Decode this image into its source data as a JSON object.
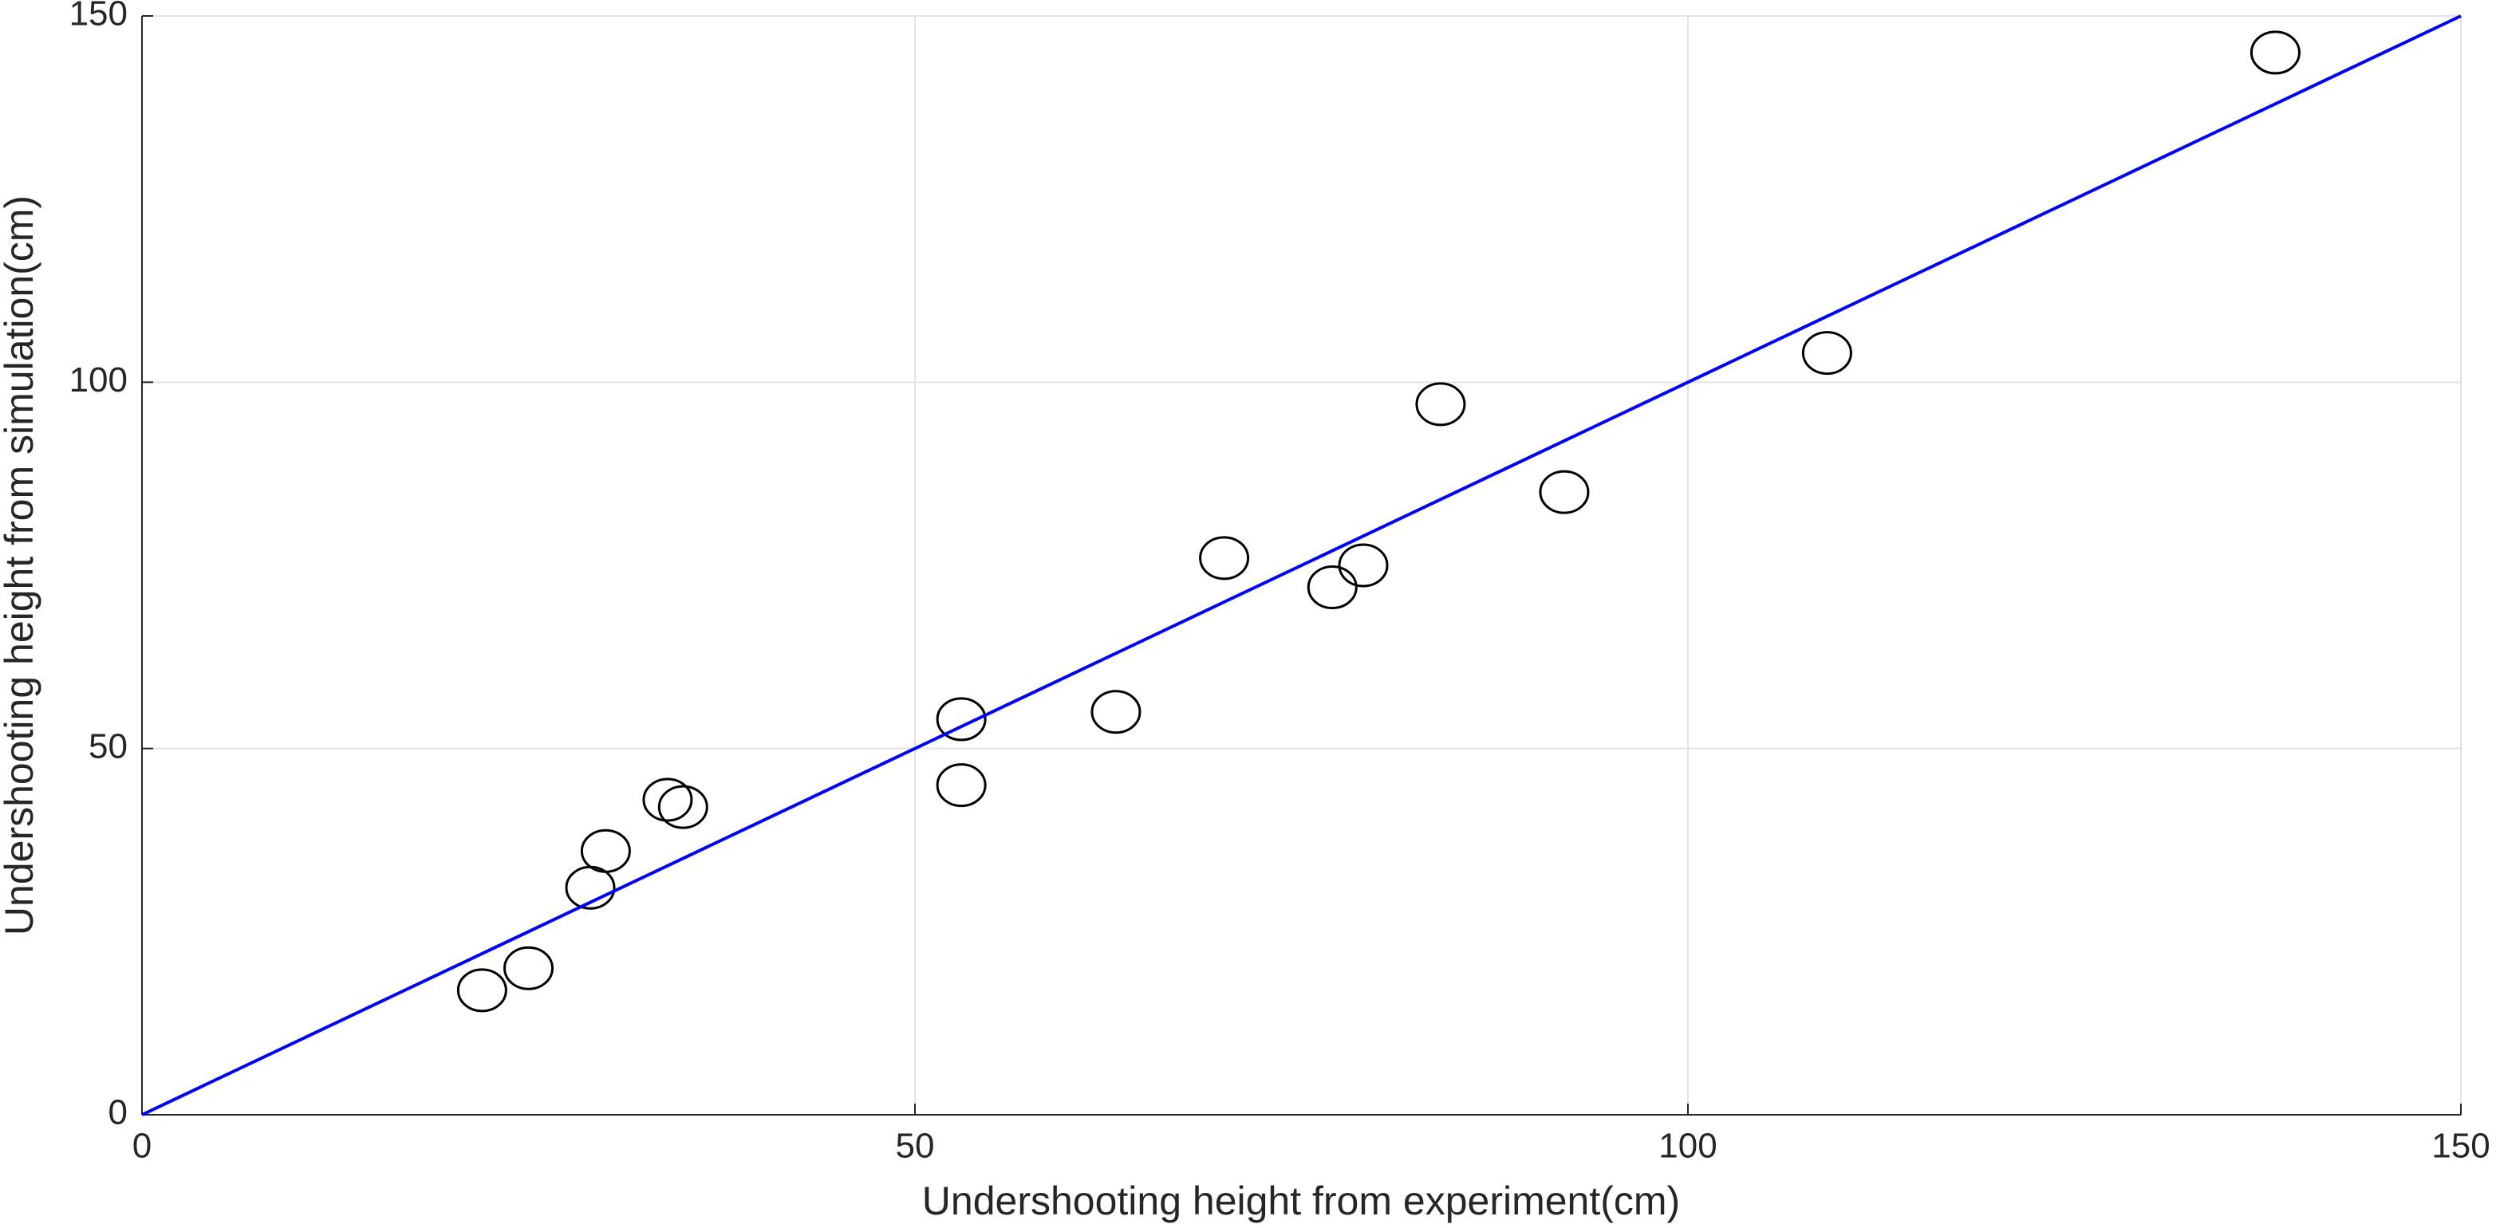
{
  "chart_data": {
    "type": "scatter",
    "xlabel": "Undershooting height from experiment(cm)",
    "ylabel": "Undershooting height from simulation(cm)",
    "xlim": [
      0,
      150
    ],
    "ylim": [
      0,
      150
    ],
    "xticks": [
      0,
      50,
      100,
      150
    ],
    "yticks": [
      0,
      50,
      100,
      150
    ],
    "grid": true,
    "series": [
      {
        "type": "scatter",
        "marker": "open-circle",
        "color": "#000000",
        "x": [
          22,
          25,
          29,
          30,
          34,
          35,
          53,
          53,
          63,
          70,
          77,
          79,
          84,
          92,
          109,
          138
        ],
        "values": [
          17,
          20,
          31,
          36,
          43,
          42,
          54,
          45,
          55,
          76,
          72,
          75,
          97,
          85,
          104,
          145
        ]
      },
      {
        "type": "line",
        "color": "#0000ff",
        "x": [
          0,
          150
        ],
        "values": [
          0,
          150
        ]
      }
    ]
  }
}
